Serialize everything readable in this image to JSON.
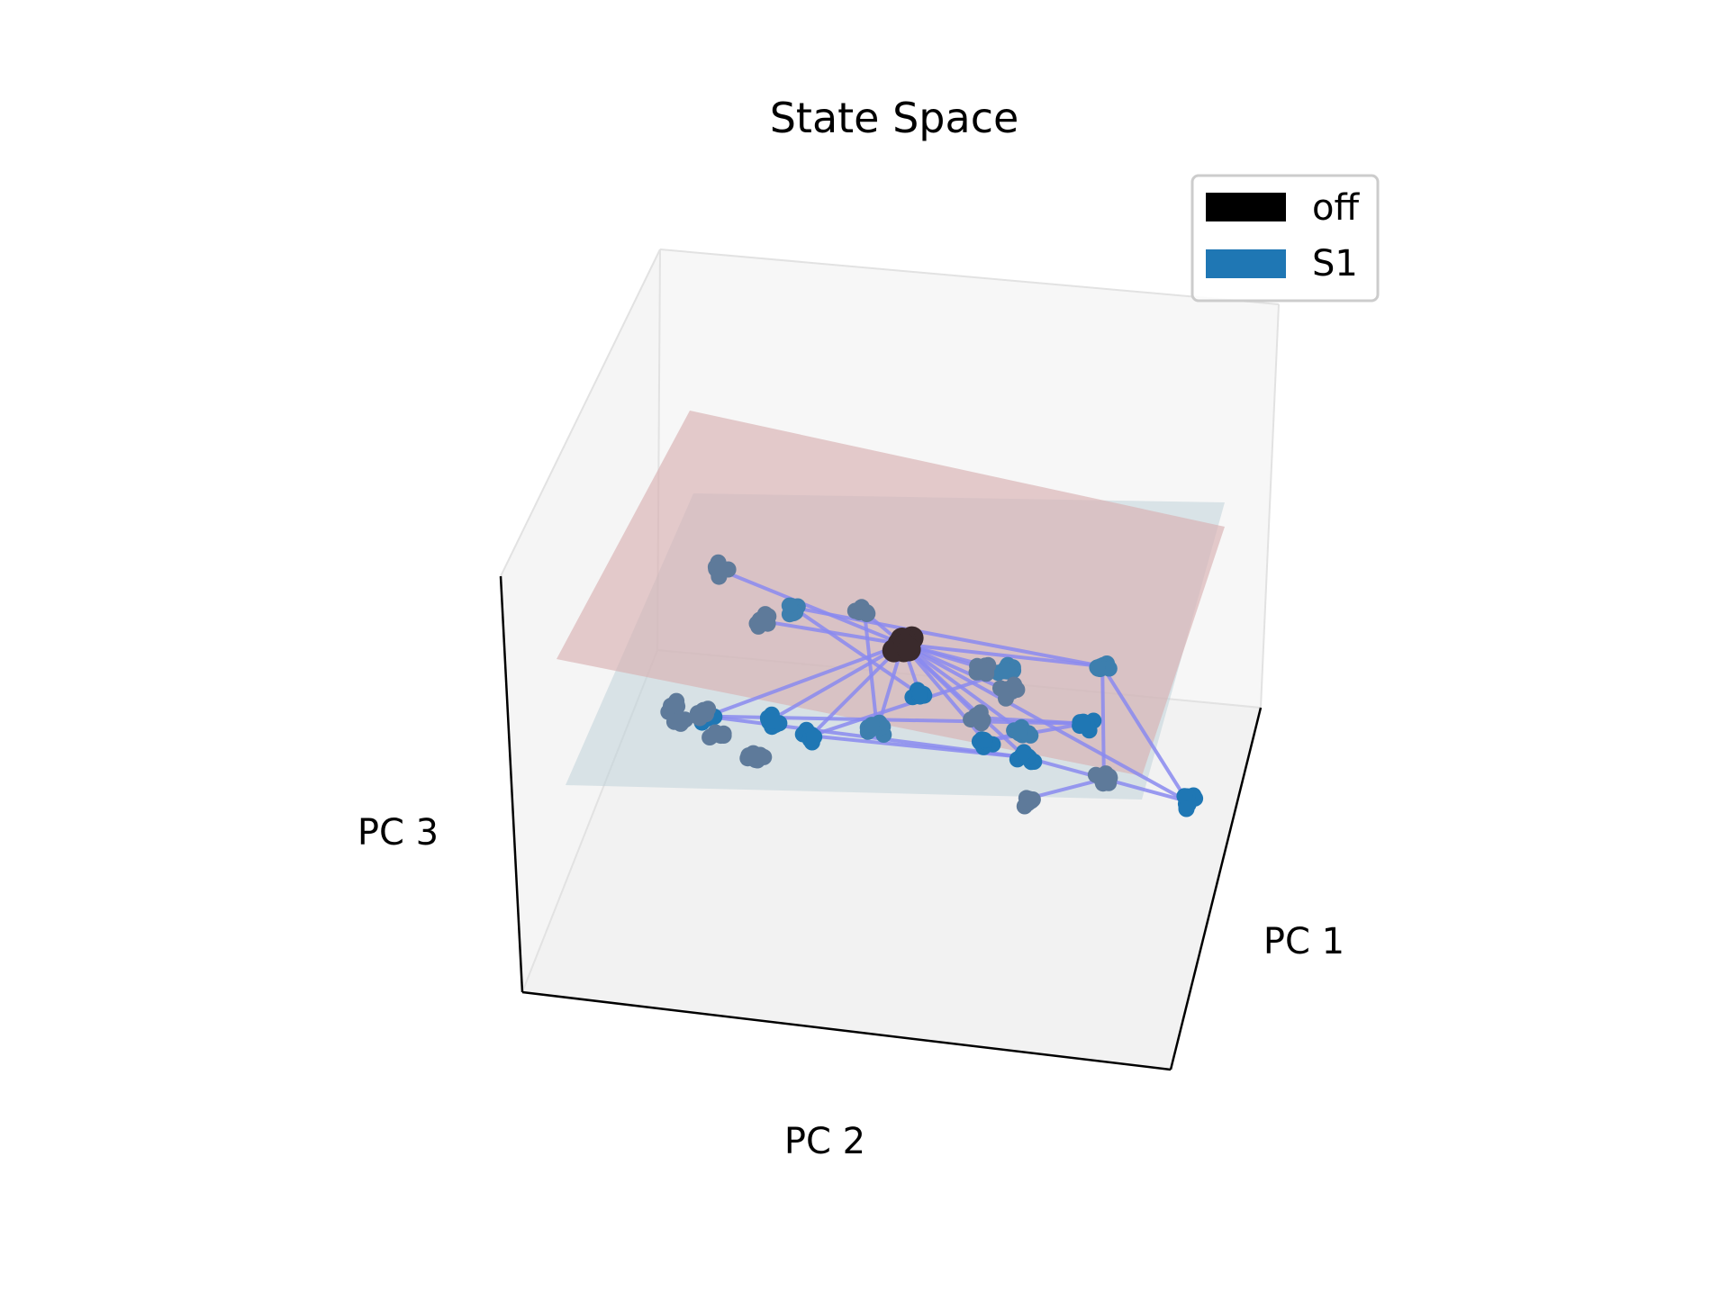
{
  "chart_data": {
    "type": "scatter",
    "projection": "3d",
    "title": "State Space",
    "axes": {
      "x": {
        "label": "PC 1"
      },
      "y": {
        "label": "PC 2"
      },
      "z": {
        "label": "PC 3"
      }
    },
    "ticks_visible": false,
    "grid": false,
    "legend": {
      "placement": "top-right",
      "entries": [
        {
          "label": "off",
          "color": "#000000"
        },
        {
          "label": "S1",
          "color": "#1f77b4"
        }
      ]
    },
    "colors": {
      "off": "#3a2a2c",
      "s1_low": "#1f77b4",
      "s1_mid": "#3d7fae",
      "s1_high": "#5e7a9a",
      "trajectory": "#8a8af0",
      "plane_upper": "#d9b0b2",
      "plane_lower": "#bcd0d8",
      "pane": "#f2f2f2"
    },
    "planes": [
      {
        "name": "lower-plane",
        "color": "#bcd0d8",
        "alpha": 0.5
      },
      {
        "name": "upper-plane",
        "color": "#d9b0b2",
        "alpha": 0.65
      }
    ],
    "series": [
      {
        "name": "off",
        "points": [
          {
            "id": "off",
            "x": 0.0,
            "y": 0.0,
            "z": 0.0
          }
        ]
      },
      {
        "name": "S1",
        "points": [
          {
            "id": "u1",
            "x": -0.95,
            "y": -0.55,
            "z": 0.05
          },
          {
            "id": "u2",
            "x": -0.7,
            "y": -0.75,
            "z": 0.0
          },
          {
            "id": "u3",
            "x": -0.45,
            "y": -0.32,
            "z": 0.03
          },
          {
            "id": "u4",
            "x": -0.25,
            "y": -0.38,
            "z": 0.02
          },
          {
            "id": "u5",
            "x": -0.15,
            "y": -0.28,
            "z": 0.04
          },
          {
            "id": "u6",
            "x": 0.15,
            "y": 0.15,
            "z": 0.02
          },
          {
            "id": "u7",
            "x": 0.05,
            "y": 0.45,
            "z": 0.0
          },
          {
            "id": "u8",
            "x": 0.3,
            "y": 0.65,
            "z": 0.04
          },
          {
            "id": "u9",
            "x": -0.9,
            "y": 0.3,
            "z": 0.05
          },
          {
            "id": "u10",
            "x": -0.75,
            "y": 0.45,
            "z": 0.03
          },
          {
            "id": "u11",
            "x": -0.6,
            "y": 0.52,
            "z": 0.02
          },
          {
            "id": "u12",
            "x": -0.65,
            "y": 0.58,
            "z": 0.01
          },
          {
            "id": "u13",
            "x": -0.55,
            "y": 0.62,
            "z": 0.0
          },
          {
            "id": "m1",
            "x": 0.55,
            "y": -0.55,
            "z": -0.45
          },
          {
            "id": "m2",
            "x": 0.5,
            "y": -0.25,
            "z": -0.48
          },
          {
            "id": "m3",
            "x": 0.2,
            "y": -0.35,
            "z": -0.52
          },
          {
            "id": "m4",
            "x": 0.1,
            "y": 0.1,
            "z": -0.5
          },
          {
            "id": "m5",
            "x": 0.75,
            "y": 0.5,
            "z": -0.48
          },
          {
            "id": "l1",
            "x": 0.4,
            "y": -0.85,
            "z": -0.95
          },
          {
            "id": "l2",
            "x": 0.55,
            "y": -0.3,
            "z": -0.95
          },
          {
            "id": "l3",
            "x": 0.65,
            "y": -0.15,
            "z": -0.98
          },
          {
            "id": "l4",
            "x": 0.8,
            "y": -0.45,
            "z": -0.98
          },
          {
            "id": "l5",
            "x": 0.85,
            "y": 0.1,
            "z": -0.96
          },
          {
            "id": "l6",
            "x": 0.55,
            "y": 0.4,
            "z": -0.95
          },
          {
            "id": "l7",
            "x": 0.65,
            "y": 0.55,
            "z": -0.98
          },
          {
            "id": "l8",
            "x": 0.6,
            "y": 0.75,
            "z": -0.95
          }
        ]
      }
    ],
    "trajectories": [
      [
        "off",
        "u3"
      ],
      [
        "off",
        "u4"
      ],
      [
        "off",
        "u5"
      ],
      [
        "off",
        "u6"
      ],
      [
        "off",
        "u7"
      ],
      [
        "off",
        "u8"
      ],
      [
        "off",
        "m1"
      ],
      [
        "off",
        "m2"
      ],
      [
        "off",
        "m3"
      ],
      [
        "off",
        "m4"
      ],
      [
        "off",
        "l1"
      ],
      [
        "off",
        "l2"
      ],
      [
        "off",
        "l3"
      ],
      [
        "off",
        "l5"
      ],
      [
        "off",
        "l6"
      ],
      [
        "off",
        "l7"
      ],
      [
        "off",
        "l8"
      ],
      [
        "u1",
        "u2"
      ],
      [
        "u2",
        "m1"
      ],
      [
        "u3",
        "l4"
      ],
      [
        "u6",
        "m4"
      ],
      [
        "m1",
        "m5"
      ],
      [
        "m1",
        "l1"
      ],
      [
        "m2",
        "l6"
      ],
      [
        "m3",
        "l3"
      ],
      [
        "m5",
        "l5"
      ],
      [
        "l1",
        "l2"
      ],
      [
        "l2",
        "l6"
      ],
      [
        "l3",
        "l4"
      ],
      [
        "l4",
        "l8"
      ],
      [
        "l2",
        "l8"
      ]
    ]
  }
}
